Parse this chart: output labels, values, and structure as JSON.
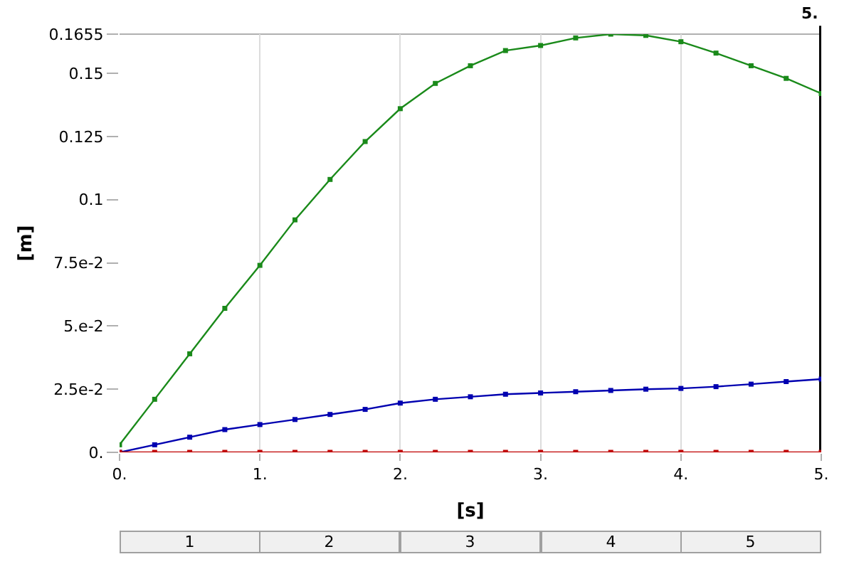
{
  "chart_data": {
    "type": "line",
    "xlabel": "[s]",
    "ylabel": "[m]",
    "x": [
      0,
      0.25,
      0.5,
      0.75,
      1,
      1.25,
      1.5,
      1.75,
      2,
      2.25,
      2.5,
      2.75,
      3,
      3.25,
      3.5,
      3.75,
      4,
      4.25,
      4.5,
      4.75,
      5
    ],
    "series": [
      {
        "color": "#1a8a1a",
        "values": [
          0.003,
          0.021,
          0.039,
          0.057,
          0.074,
          0.092,
          0.108,
          0.123,
          0.136,
          0.146,
          0.153,
          0.159,
          0.161,
          0.164,
          0.1655,
          0.165,
          0.1625,
          0.158,
          0.153,
          0.148,
          0.142
        ]
      },
      {
        "color": "#0000b0",
        "values": [
          0,
          0.003,
          0.006,
          0.009,
          0.011,
          0.013,
          0.015,
          0.017,
          0.0195,
          0.021,
          0.022,
          0.023,
          0.0235,
          0.024,
          0.0245,
          0.025,
          0.0253,
          0.026,
          0.027,
          0.028,
          0.029
        ]
      },
      {
        "color": "#c00000",
        "values": [
          0,
          0,
          0,
          0,
          0,
          0,
          0,
          0,
          0,
          0,
          0,
          0,
          0,
          0,
          0,
          0,
          0,
          0,
          0,
          0,
          0
        ]
      }
    ],
    "xlim": [
      0,
      5
    ],
    "xticks": [
      {
        "value": 0,
        "label": "0."
      },
      {
        "value": 1,
        "label": "1."
      },
      {
        "value": 2,
        "label": "2."
      },
      {
        "value": 3,
        "label": "3."
      },
      {
        "value": 4,
        "label": "4."
      },
      {
        "value": 5,
        "label": "5."
      }
    ],
    "ylim": [
      0,
      0.1655
    ],
    "yticks": [
      {
        "value": 0,
        "label": "0."
      },
      {
        "value": 0.025,
        "label": "2.5e-2"
      },
      {
        "value": 0.05,
        "label": "5.e-2"
      },
      {
        "value": 0.075,
        "label": "7.5e-2"
      },
      {
        "value": 0.1,
        "label": "0.1"
      },
      {
        "value": 0.125,
        "label": "0.125"
      },
      {
        "value": 0.15,
        "label": "0.15"
      },
      {
        "value": 0.1655,
        "label": "0.1655"
      }
    ],
    "ref_lines": [
      {
        "axis": "x",
        "value": 5,
        "label": "5.",
        "color": "#000000"
      }
    ],
    "annotations": [
      "1",
      "2",
      "3",
      "4",
      "5"
    ],
    "grid": "x",
    "marker": "square",
    "line_style": "solid"
  }
}
